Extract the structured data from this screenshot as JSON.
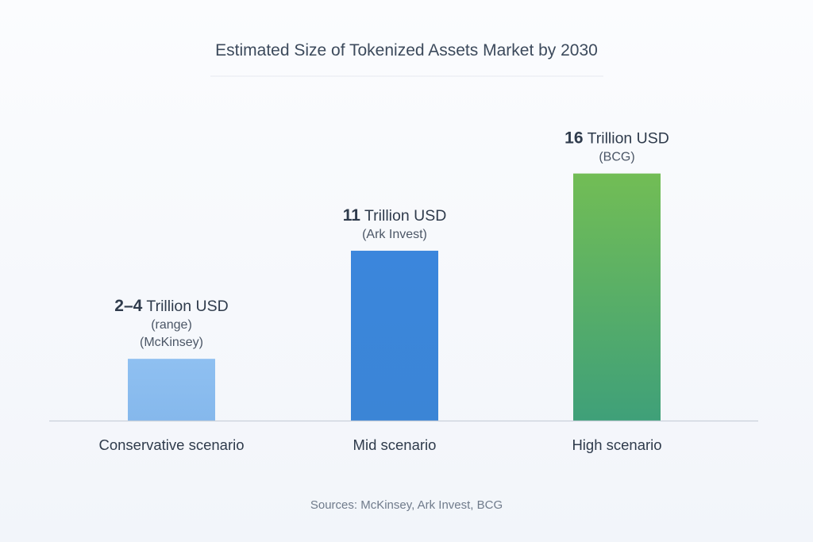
{
  "chart_data": {
    "type": "bar",
    "title": "Estimated Size of Tokenized Assets Market by 2030",
    "categories": [
      "Conservative scenario",
      "Mid scenario",
      "High scenario"
    ],
    "values": [
      4,
      11,
      16
    ],
    "value_labels": [
      {
        "number": "2–4",
        "unit": "Trillion USD",
        "notes": [
          "(range)",
          "(McKinsey)"
        ]
      },
      {
        "number": "11",
        "unit": "Trillion USD",
        "notes": [
          "(Ark Invest)"
        ]
      },
      {
        "number": "16",
        "unit": "Trillion USD",
        "notes": [
          "(BCG)"
        ]
      }
    ],
    "ylim": [
      0,
      18.5
    ],
    "xlabel": "",
    "ylabel": "",
    "grid": false,
    "source": "Sources: McKinsey, Ark Invest, BCG",
    "colors": {
      "bars_top": [
        "#8fc0f1",
        "#3b86dc",
        "#72bd55"
      ],
      "bars_bottom": [
        "#85b8ec",
        "#3b85d6",
        "#3fa079"
      ],
      "title": "#3c4a5c",
      "label": "#2f3b4c",
      "note": "#4b5666",
      "source": "#6f7b8b",
      "axis": "#c9d0da"
    }
  }
}
